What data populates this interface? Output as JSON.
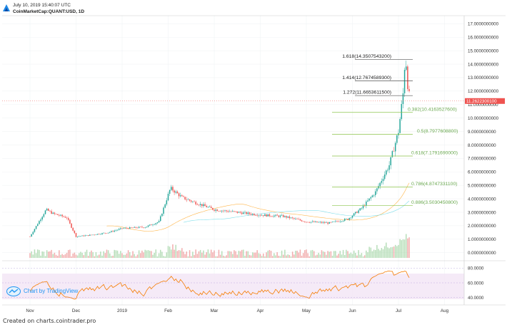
{
  "header": {
    "timestamp": "July 10, 2019 15:40:07 UTC",
    "symbol": "CoinMarketCap:QUANT:USD, 1D"
  },
  "footer": {
    "text": "Created on charts.cointrader.pro"
  },
  "watermark": {
    "text": "Chart by TradingView"
  },
  "colors": {
    "up": "#26a69a",
    "down": "#ef5350",
    "rsi": "#f57c00",
    "fib": "#8bc34a",
    "price_label_bg": "#ef5350"
  },
  "chart_data": {
    "type": "candlestick",
    "x_tick_labels": [
      "Nov",
      "Dec",
      "2019",
      "Feb",
      "Mar",
      "Apr",
      "May",
      "Jun",
      "Jul",
      "Aug"
    ],
    "y_tick_labels": [
      "0.0000000000",
      "1.0000000000",
      "2.0000000000",
      "3.0000000000",
      "4.0000000000",
      "5.0000000000",
      "6.0000000000",
      "7.0000000000",
      "8.0000000000",
      "9.0000000000",
      "10.0000000000",
      "11.0000000000",
      "12.0000000000",
      "13.0000000000",
      "14.0000000000",
      "15.0000000000",
      "16.0000000000",
      "17.0000000000"
    ],
    "ylim": [
      -0.6,
      17.6
    ],
    "last_price": 11.2622,
    "last_price_label": "11.2622300100",
    "close_path": [
      {
        "m": 0,
        "v": 1.2
      },
      {
        "m": 0.35,
        "v": 3.2
      },
      {
        "m": 0.5,
        "v": 2.9
      },
      {
        "m": 0.8,
        "v": 2.6
      },
      {
        "m": 1.0,
        "v": 1.2
      },
      {
        "m": 1.3,
        "v": 1.3
      },
      {
        "m": 1.7,
        "v": 1.5
      },
      {
        "m": 2.0,
        "v": 1.8
      },
      {
        "m": 2.5,
        "v": 1.9
      },
      {
        "m": 2.8,
        "v": 2.3
      },
      {
        "m": 3.05,
        "v": 4.8
      },
      {
        "m": 3.3,
        "v": 4.1
      },
      {
        "m": 3.6,
        "v": 3.7
      },
      {
        "m": 4.0,
        "v": 3.2
      },
      {
        "m": 4.5,
        "v": 3.0
      },
      {
        "m": 5.0,
        "v": 2.8
      },
      {
        "m": 5.5,
        "v": 2.7
      },
      {
        "m": 6.0,
        "v": 2.3
      },
      {
        "m": 6.5,
        "v": 2.2
      },
      {
        "m": 6.9,
        "v": 2.5
      },
      {
        "m": 7.2,
        "v": 3.3
      },
      {
        "m": 7.5,
        "v": 4.5
      },
      {
        "m": 7.8,
        "v": 6.5
      },
      {
        "m": 8.0,
        "v": 9.0
      },
      {
        "m": 8.1,
        "v": 11.8
      },
      {
        "m": 8.15,
        "v": 14.8
      },
      {
        "m": 8.2,
        "v": 12.5
      },
      {
        "m": 8.25,
        "v": 11.26
      }
    ],
    "fib_levels": [
      {
        "ratio": "1.618",
        "value": 14.35075432,
        "label": "1.618(14.3507543200)"
      },
      {
        "ratio": "1.414",
        "value": 12.76745893,
        "label": "1.414(12.7674589300)"
      },
      {
        "ratio": "1.272",
        "value": 11.66536115,
        "label": "1.272(11.6653611500)"
      },
      {
        "ratio": "0.382",
        "value": 10.41635276,
        "label": "0.382(10.4163527600)"
      },
      {
        "ratio": "0.5",
        "value": 8.79776088,
        "label": "0.5(8.7977608800)"
      },
      {
        "ratio": "0.618",
        "value": 7.179169,
        "label": "0.618(7.1791690000)"
      },
      {
        "ratio": "0.786",
        "value": 4.87473311,
        "label": "0.786(4.8747331100)"
      },
      {
        "ratio": "0.886",
        "value": 3.50304508,
        "label": "0.886(3.5030450800)"
      }
    ],
    "rsi": {
      "y_tick_labels": [
        "40.0000",
        "60.0000",
        "80.0000"
      ],
      "ylim": [
        30,
        90
      ],
      "band": [
        30,
        70
      ]
    }
  }
}
